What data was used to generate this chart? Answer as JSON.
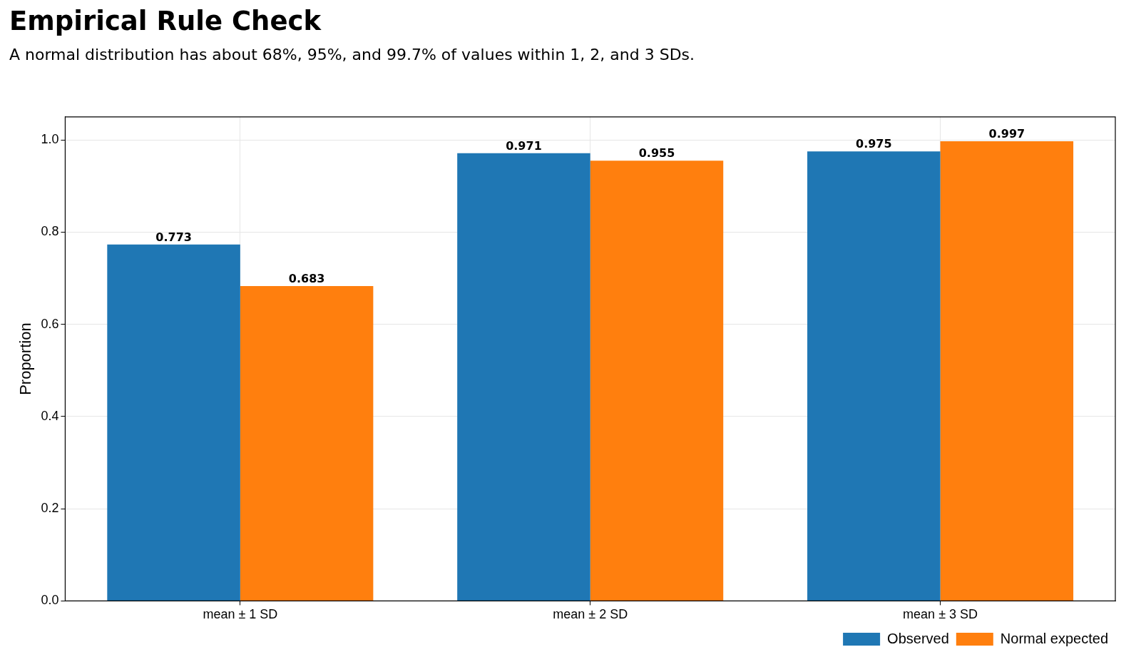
{
  "chart_data": {
    "type": "bar",
    "title": "Empirical Rule Check",
    "subtitle": "A normal distribution has about 68%, 95%, and 99.7% of values within 1, 2, and 3 SDs.",
    "ylabel": "Proportion",
    "categories": [
      "mean ± 1 SD",
      "mean ± 2 SD",
      "mean ± 3 SD"
    ],
    "series": [
      {
        "name": "Observed",
        "color": "#1f77b4",
        "values": [
          0.773,
          0.971,
          0.975
        ]
      },
      {
        "name": "Normal expected",
        "color": "#ff7f0e",
        "values": [
          0.683,
          0.955,
          0.997
        ]
      }
    ],
    "ylim": [
      0,
      1.05
    ],
    "yticks": [
      {
        "value": 0,
        "label": "0.0"
      },
      {
        "value": 0.2,
        "label": "0.2"
      },
      {
        "value": 0.4,
        "label": "0.4"
      },
      {
        "value": 0.6,
        "label": "0.6"
      },
      {
        "value": 0.8,
        "label": "0.8"
      },
      {
        "value": 1,
        "label": "1.0"
      }
    ],
    "grid": true,
    "legend": "bottom right",
    "data_labels": true
  }
}
